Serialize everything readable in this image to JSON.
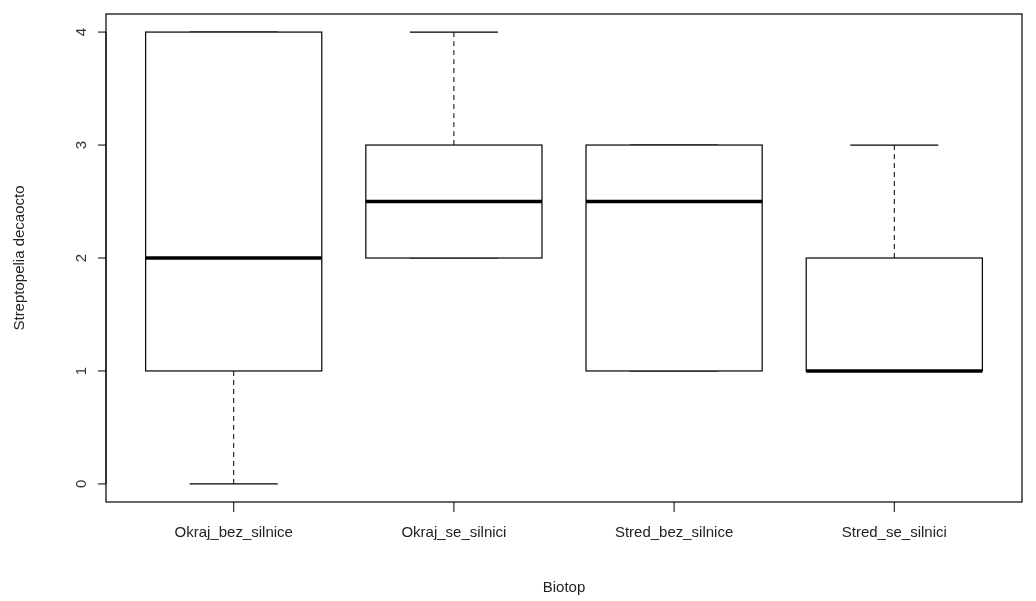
{
  "chart_data": {
    "type": "box",
    "xlabel": "Biotop",
    "ylabel": "Streptopelia decaocto",
    "categories": [
      "Okraj_bez_silnice",
      "Okraj_se_silnici",
      "Stred_bez_silnice",
      "Stred_se_silnici"
    ],
    "boxes": [
      {
        "low": 0,
        "q1": 1,
        "median": 2,
        "q3": 4,
        "high": 4
      },
      {
        "low": 2,
        "q1": 2,
        "median": 2.5,
        "q3": 3,
        "high": 4
      },
      {
        "low": 1,
        "q1": 1,
        "median": 2.5,
        "q3": 3,
        "high": 3
      },
      {
        "low": 1,
        "q1": 1,
        "median": 1,
        "q3": 2,
        "high": 3
      }
    ],
    "ylim": [
      -0.16,
      4.16
    ],
    "yticks": [
      0,
      1,
      2,
      3,
      4
    ],
    "grid": false
  }
}
